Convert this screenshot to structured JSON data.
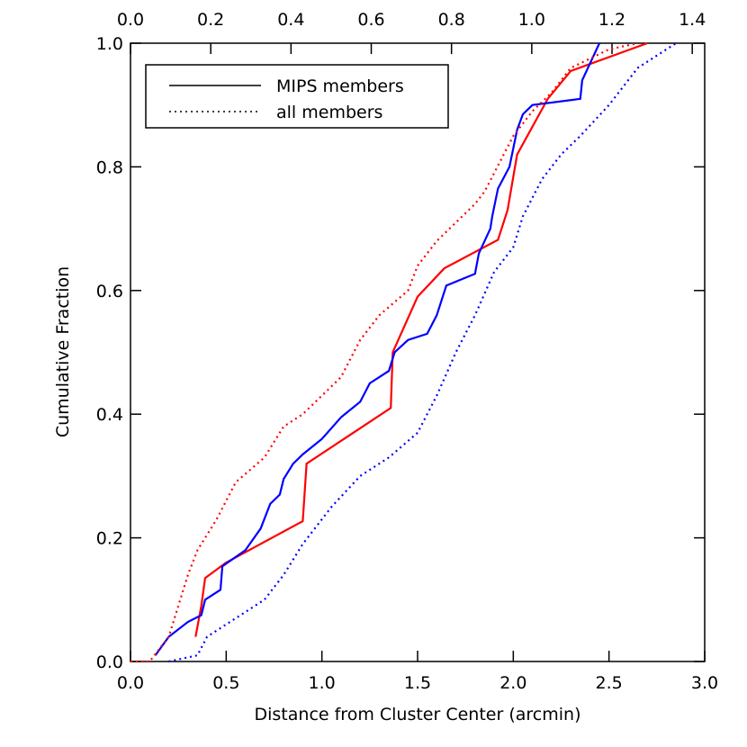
{
  "chart_data": {
    "type": "line",
    "xlabel": "Distance from Cluster Center (arcmin)",
    "ylabel": "Cumulative Fraction",
    "xlim": [
      0,
      3
    ],
    "ylim": [
      0,
      1
    ],
    "x2lim": [
      0,
      1.431
    ],
    "xticks": [
      {
        "value": 0,
        "label": "0.0"
      },
      0.5,
      {
        "value": 1,
        "label": "1.0"
      },
      1.5,
      {
        "value": 2,
        "label": "2.0"
      },
      2.5,
      {
        "value": 3,
        "label": "3.0"
      }
    ],
    "yticks": [
      {
        "value": 0,
        "label": "0.0"
      },
      0.2,
      0.4,
      0.6,
      0.8,
      {
        "value": 1,
        "label": "1.0"
      }
    ],
    "x2ticks": [
      {
        "value": 0,
        "label": "0.0"
      },
      0.2,
      0.4,
      0.6,
      0.8,
      {
        "value": 1,
        "label": "1.0"
      },
      1.2,
      1.4
    ],
    "legend": [
      {
        "label": "MIPS members",
        "dash": "solid"
      },
      {
        "label": "all members",
        "dash": "dotted"
      }
    ],
    "series": [
      {
        "color": "#ff0000",
        "dash": "solid",
        "x": [
          0.34,
          0.37,
          0.39,
          0.5,
          0.9,
          0.92,
          1.36,
          1.37,
          1.5,
          1.64,
          1.92,
          1.97,
          2.02,
          2.18,
          2.3,
          2.7
        ],
        "values": [
          0.04,
          0.09,
          0.135,
          0.16,
          0.227,
          0.32,
          0.41,
          0.5,
          0.59,
          0.636,
          0.682,
          0.73,
          0.82,
          0.91,
          0.955,
          1.0
        ]
      },
      {
        "color": "#0000ff",
        "dash": "solid",
        "x": [
          0.13,
          0.2,
          0.3,
          0.37,
          0.39,
          0.47,
          0.48,
          0.6,
          0.68,
          0.73,
          0.78,
          0.8,
          0.85,
          0.9,
          1.0,
          1.1,
          1.2,
          1.25,
          1.35,
          1.38,
          1.45,
          1.55,
          1.6,
          1.65,
          1.8,
          1.82,
          1.85,
          1.88,
          1.89,
          1.92,
          1.98,
          2.02,
          2.05,
          2.1,
          2.35,
          2.36,
          2.45
        ],
        "values": [
          0.01,
          0.04,
          0.064,
          0.075,
          0.1,
          0.116,
          0.154,
          0.18,
          0.215,
          0.255,
          0.27,
          0.295,
          0.32,
          0.335,
          0.36,
          0.395,
          0.42,
          0.45,
          0.47,
          0.5,
          0.52,
          0.53,
          0.56,
          0.608,
          0.627,
          0.66,
          0.68,
          0.7,
          0.72,
          0.765,
          0.8,
          0.86,
          0.885,
          0.9,
          0.91,
          0.94,
          1.0
        ]
      },
      {
        "color": "#ff0000",
        "dash": "dotted",
        "x": [
          0,
          0.1,
          0.2,
          0.25,
          0.3,
          0.35,
          0.45,
          0.55,
          0.7,
          0.8,
          0.9,
          1.0,
          1.1,
          1.2,
          1.3,
          1.45,
          1.5,
          1.6,
          1.7,
          1.8,
          1.85,
          1.95,
          2.0,
          2.1,
          2.2,
          2.3,
          2.5,
          2.65
        ],
        "values": [
          0,
          0,
          0.04,
          0.09,
          0.14,
          0.18,
          0.23,
          0.29,
          0.33,
          0.38,
          0.4,
          0.43,
          0.46,
          0.52,
          0.56,
          0.6,
          0.64,
          0.68,
          0.71,
          0.74,
          0.76,
          0.82,
          0.85,
          0.89,
          0.92,
          0.96,
          0.99,
          1.0
        ]
      },
      {
        "color": "#0000ff",
        "dash": "dotted",
        "x": [
          0.2,
          0.35,
          0.4,
          0.55,
          0.7,
          0.8,
          0.9,
          1.05,
          1.2,
          1.35,
          1.5,
          1.6,
          1.7,
          1.8,
          1.9,
          2.0,
          2.05,
          2.15,
          2.25,
          2.35,
          2.5,
          2.65,
          2.85
        ],
        "values": [
          0,
          0.01,
          0.04,
          0.07,
          0.1,
          0.14,
          0.19,
          0.25,
          0.3,
          0.33,
          0.37,
          0.43,
          0.5,
          0.56,
          0.63,
          0.67,
          0.72,
          0.78,
          0.82,
          0.85,
          0.9,
          0.96,
          1.0
        ]
      }
    ]
  }
}
